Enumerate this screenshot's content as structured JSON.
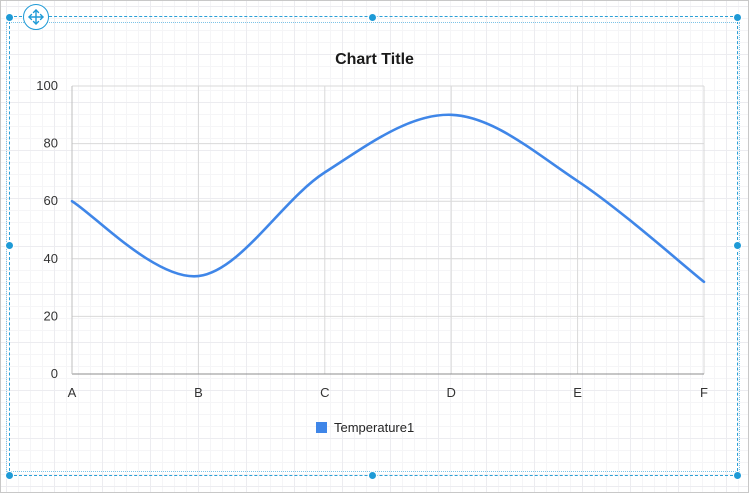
{
  "chart_data": {
    "type": "line",
    "title": "Chart Title",
    "categories": [
      "A",
      "B",
      "C",
      "D",
      "E",
      "F"
    ],
    "series": [
      {
        "name": "Temperature1",
        "values": [
          60,
          34,
          70,
          90,
          67,
          32
        ],
        "color": "#3f86e8"
      }
    ],
    "ylim": [
      0,
      100
    ],
    "yticks": [
      "0",
      "20",
      "40",
      "60",
      "80",
      "100"
    ],
    "smooth": true,
    "grid": true,
    "legend_position": "bottom"
  },
  "designer": {
    "move_handle_icon": "move-arrows-icon",
    "accent_color": "#1e9ad6"
  }
}
